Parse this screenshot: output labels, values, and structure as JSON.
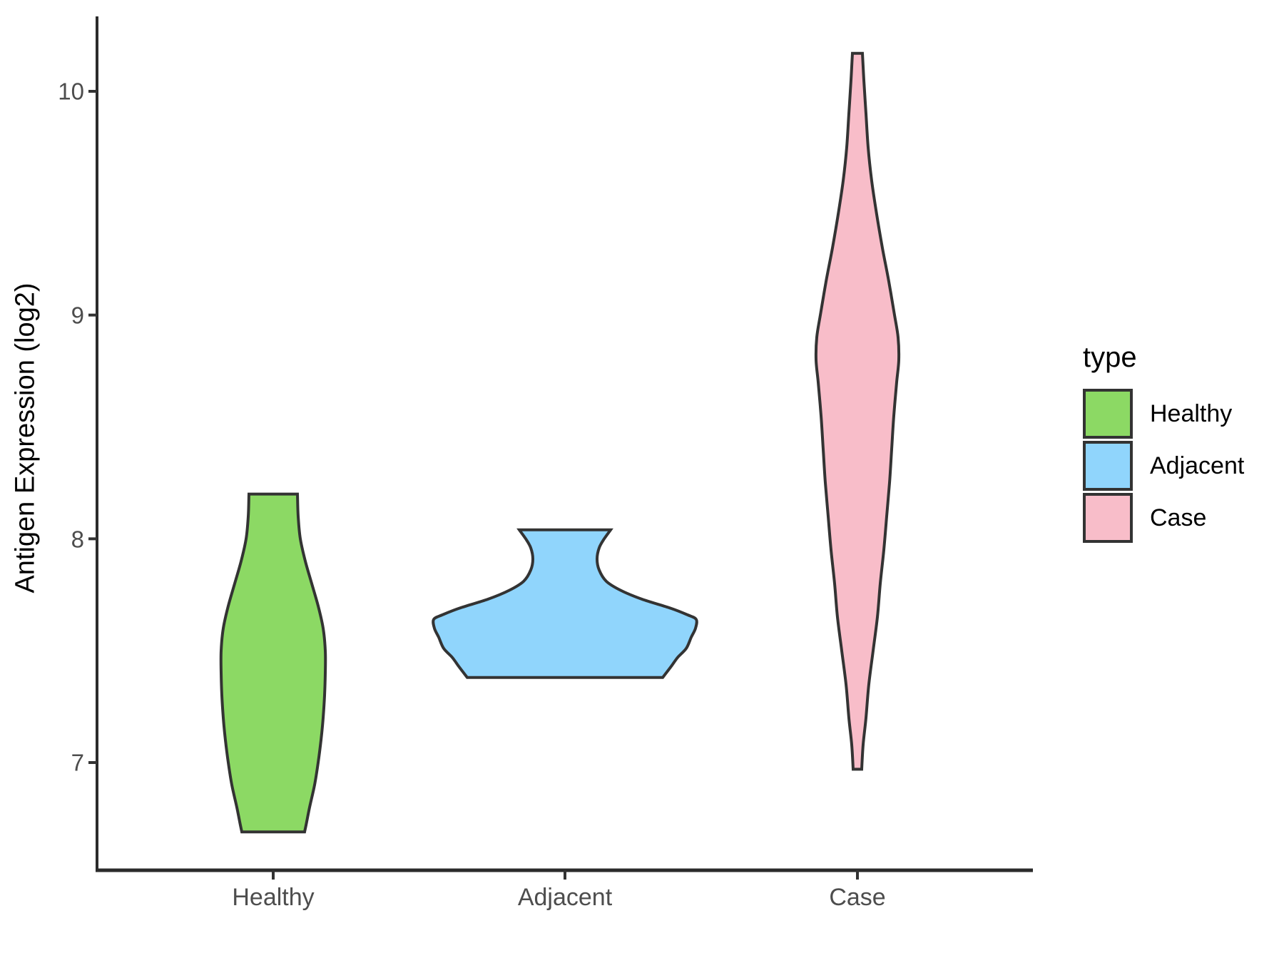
{
  "chart_data": {
    "type": "violin",
    "title": "",
    "xlabel": "",
    "ylabel": "Antigen Expression (log2)",
    "categories": [
      "Healthy",
      "Adjacent",
      "Case"
    ],
    "y_ticks": [
      7,
      8,
      9,
      10
    ],
    "ylim": [
      6.52,
      10.34
    ],
    "grid": "off",
    "legend": {
      "title": "type",
      "position": "right",
      "entries": [
        {
          "label": "Healthy",
          "color": "#8CD964"
        },
        {
          "label": "Adjacent",
          "color": "#90D5FC"
        },
        {
          "label": "Case",
          "color": "#F8BDC9"
        }
      ]
    },
    "colors": {
      "outline": "#333333",
      "axis": "#2B2B2B",
      "tick": "#333333",
      "tick_label": "#4D4D4D"
    },
    "series": [
      {
        "name": "Healthy",
        "fill": "#8CD964",
        "value_range": [
          6.69,
          8.2
        ],
        "density_profile": [
          [
            8.2,
            34
          ],
          [
            8.1,
            35
          ],
          [
            8.0,
            38
          ],
          [
            7.9,
            45
          ],
          [
            7.8,
            54
          ],
          [
            7.7,
            63
          ],
          [
            7.6,
            70
          ],
          [
            7.5,
            73
          ],
          [
            7.4,
            73
          ],
          [
            7.3,
            72
          ],
          [
            7.2,
            70
          ],
          [
            7.1,
            67
          ],
          [
            7.0,
            63
          ],
          [
            6.9,
            58
          ],
          [
            6.8,
            51
          ],
          [
            6.72,
            46
          ],
          [
            6.69,
            44
          ]
        ]
      },
      {
        "name": "Adjacent",
        "fill": "#90D5FC",
        "value_range": [
          7.38,
          8.04
        ],
        "density_profile": [
          [
            8.04,
            64
          ],
          [
            8.0,
            55
          ],
          [
            7.96,
            48
          ],
          [
            7.91,
            45
          ],
          [
            7.86,
            48
          ],
          [
            7.81,
            58
          ],
          [
            7.77,
            78
          ],
          [
            7.73,
            108
          ],
          [
            7.69,
            148
          ],
          [
            7.66,
            172
          ],
          [
            7.64,
            184
          ],
          [
            7.6,
            183
          ],
          [
            7.56,
            177
          ],
          [
            7.51,
            170
          ],
          [
            7.47,
            158
          ],
          [
            7.43,
            149
          ],
          [
            7.38,
            137
          ]
        ]
      },
      {
        "name": "Case",
        "fill": "#F8BDC9",
        "value_range": [
          6.97,
          10.17
        ],
        "density_profile": [
          [
            10.17,
            7
          ],
          [
            10.05,
            9
          ],
          [
            9.9,
            12
          ],
          [
            9.75,
            15
          ],
          [
            9.6,
            20
          ],
          [
            9.45,
            27
          ],
          [
            9.3,
            35
          ],
          [
            9.15,
            44
          ],
          [
            9.0,
            52
          ],
          [
            8.9,
            57
          ],
          [
            8.8,
            58
          ],
          [
            8.7,
            55
          ],
          [
            8.55,
            51
          ],
          [
            8.4,
            48
          ],
          [
            8.25,
            45
          ],
          [
            8.1,
            41
          ],
          [
            7.95,
            37
          ],
          [
            7.8,
            32
          ],
          [
            7.65,
            28
          ],
          [
            7.5,
            22
          ],
          [
            7.35,
            16
          ],
          [
            7.2,
            12
          ],
          [
            7.08,
            8
          ],
          [
            6.97,
            6
          ]
        ]
      }
    ]
  }
}
